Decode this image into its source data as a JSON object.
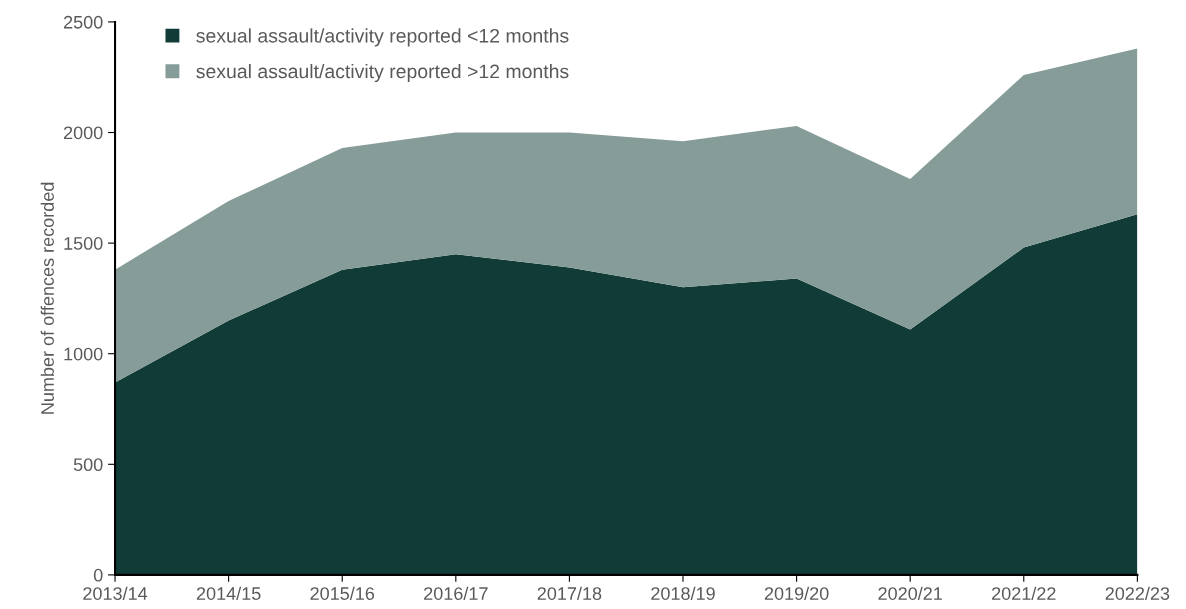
{
  "chart_data": {
    "type": "area",
    "stacked": true,
    "ylabel": "Number of offences recorded",
    "categories": [
      "2013/14",
      "2014/15",
      "2015/16",
      "2016/17",
      "2017/18",
      "2018/19",
      "2019/20",
      "2020/21",
      "2021/22",
      "2022/23"
    ],
    "series": [
      {
        "name": "sexual assault/activity reported <12 months",
        "color": "#103b36",
        "values": [
          870,
          1150,
          1380,
          1450,
          1390,
          1300,
          1340,
          1110,
          1480,
          1630
        ]
      },
      {
        "name": "sexual assault/activity reported >12 months",
        "color": "#869c98",
        "values": [
          510,
          540,
          550,
          550,
          610,
          660,
          690,
          680,
          780,
          750
        ]
      }
    ],
    "ylim": [
      0,
      2500
    ],
    "yticks": [
      0,
      500,
      1000,
      1500,
      2000,
      2500
    ],
    "grid": false,
    "legend": "top left"
  }
}
